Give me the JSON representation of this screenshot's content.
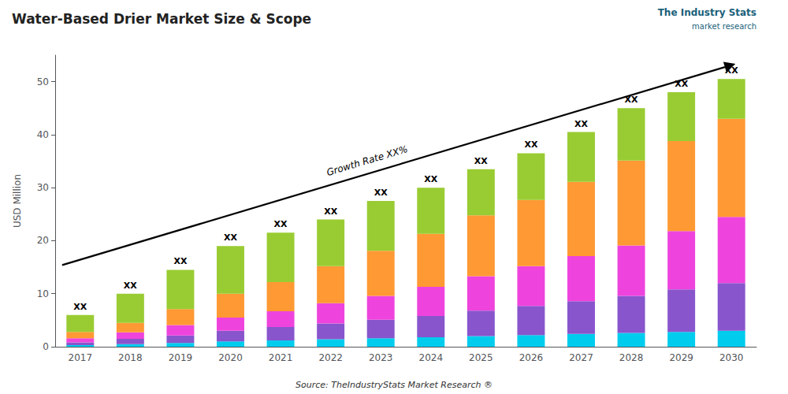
{
  "chart_data": {
    "type": "bar",
    "stacked": true,
    "title": "Water-Based Drier Market Size & Scope",
    "ylabel": "USD Million",
    "categories": [
      "2017",
      "2018",
      "2019",
      "2020",
      "2021",
      "2022",
      "2023",
      "2024",
      "2025",
      "2026",
      "2027",
      "2028",
      "2029",
      "2030"
    ],
    "series": [
      {
        "color": "#00ccee",
        "values": [
          0.3,
          0.5,
          0.7,
          1.0,
          1.2,
          1.4,
          1.6,
          1.8,
          2.0,
          2.2,
          2.4,
          2.6,
          2.8,
          3.0
        ]
      },
      {
        "color": "#8855cc",
        "values": [
          0.5,
          1.0,
          1.4,
          2.0,
          2.5,
          3.0,
          3.5,
          4.0,
          4.8,
          5.5,
          6.2,
          7.0,
          8.0,
          9.0
        ]
      },
      {
        "color": "#ee44dd",
        "values": [
          0.8,
          1.2,
          2.0,
          2.5,
          3.0,
          3.8,
          4.5,
          5.5,
          6.5,
          7.5,
          8.5,
          9.5,
          11.0,
          12.5
        ]
      },
      {
        "color": "#ff9933",
        "values": [
          1.2,
          1.8,
          3.0,
          4.5,
          5.5,
          7.0,
          8.5,
          10.0,
          11.5,
          12.5,
          14.0,
          16.0,
          17.0,
          18.5
        ]
      },
      {
        "color": "#99cc33",
        "values": [
          3.2,
          5.5,
          7.4,
          9.0,
          9.3,
          8.8,
          9.4,
          8.7,
          8.7,
          8.8,
          9.4,
          9.9,
          9.2,
          7.5
        ]
      }
    ],
    "ylim": [
      0,
      55
    ],
    "yticks": [
      0,
      10,
      20,
      30,
      40,
      50
    ],
    "grid": false,
    "bar_label": "XX",
    "annotations": [
      "Growth Rate XX%"
    ],
    "source": "Source: TheIndustryStats Market Research ®",
    "logo": [
      "The Industry Stats",
      "market research"
    ]
  }
}
